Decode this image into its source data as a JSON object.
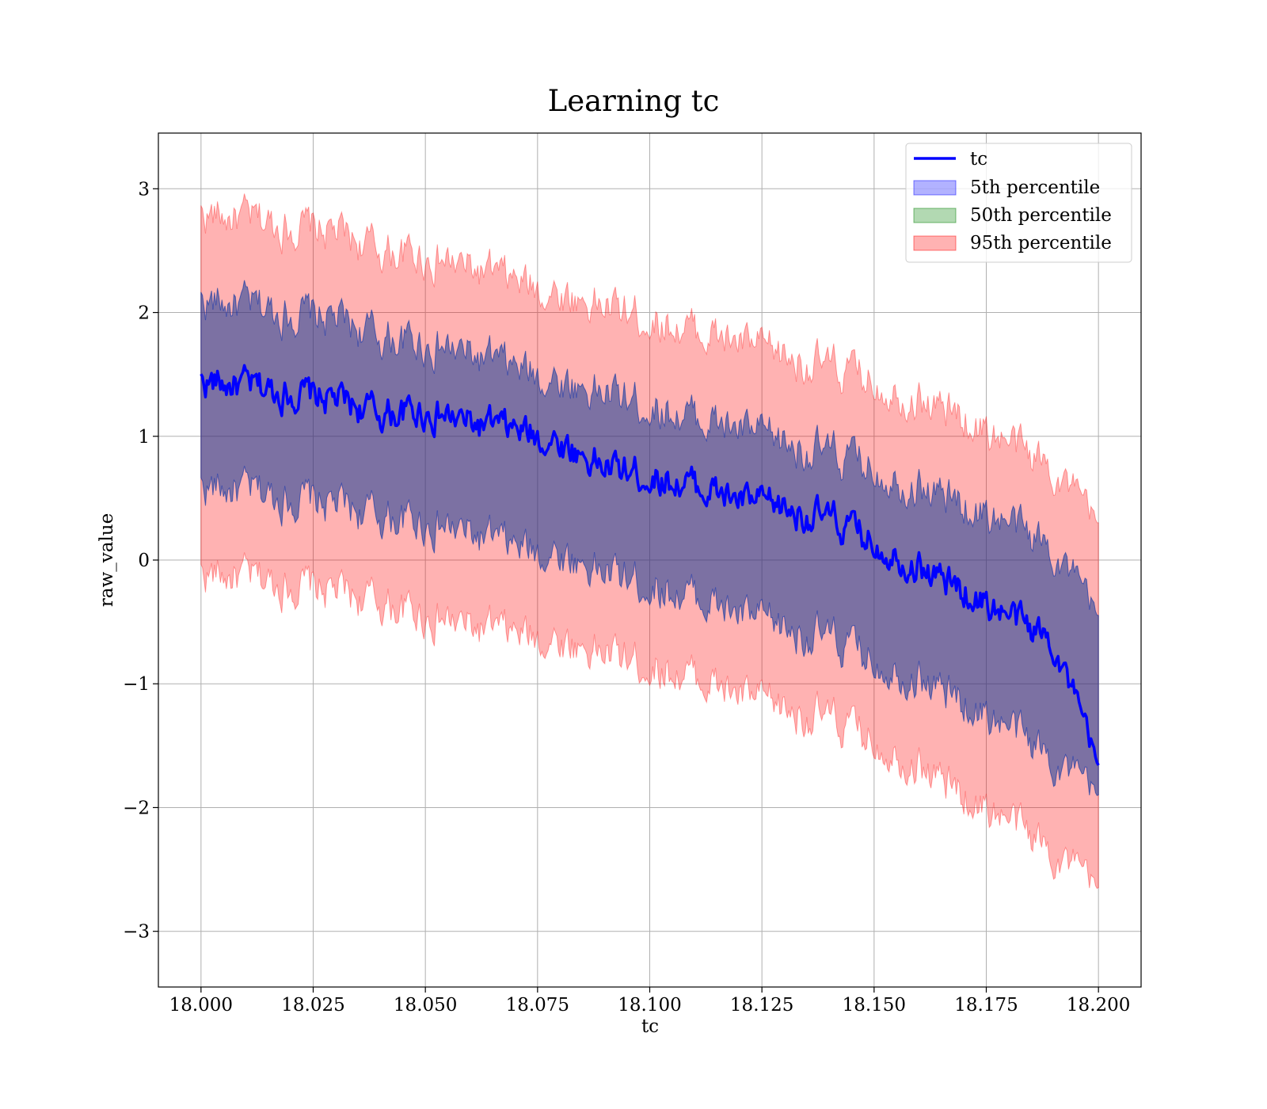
{
  "chart_data": {
    "type": "line",
    "title": "Learning tc",
    "xlabel": "tc",
    "ylabel": "raw_value",
    "xlim": [
      17.9905,
      18.2095
    ],
    "ylim": [
      -3.45,
      3.45
    ],
    "x_ticks": [
      18.0,
      18.025,
      18.05,
      18.075,
      18.1,
      18.125,
      18.15,
      18.175,
      18.2
    ],
    "x_tick_labels": [
      "18.000",
      "18.025",
      "18.050",
      "18.075",
      "18.100",
      "18.125",
      "18.150",
      "18.175",
      "18.200"
    ],
    "y_ticks": [
      3,
      2,
      1,
      0,
      -1,
      -2,
      -3
    ],
    "y_tick_labels": [
      "3",
      "2",
      "1",
      "0",
      "−1",
      "−2",
      "−3"
    ],
    "grid": true,
    "legend_position": "top-right",
    "colors": {
      "line": "#0000ff",
      "band_5": "#0000ff",
      "band_50": "#008000",
      "band_95": "#ff0000"
    },
    "series": [
      {
        "name": "tc",
        "kind": "line",
        "x": [
          18.0,
          18.01,
          18.02,
          18.03,
          18.04,
          18.05,
          18.06,
          18.07,
          18.08,
          18.09,
          18.1,
          18.11,
          18.12,
          18.13,
          18.14,
          18.15,
          18.16,
          18.17,
          18.18,
          18.19,
          18.2
        ],
        "y": [
          1.45,
          1.4,
          1.35,
          1.3,
          1.18,
          1.2,
          1.1,
          1.05,
          0.95,
          0.75,
          0.68,
          0.6,
          0.48,
          0.42,
          0.32,
          0.15,
          -0.05,
          -0.25,
          -0.45,
          -0.65,
          -1.7
        ]
      },
      {
        "name": "5th percentile",
        "kind": "band",
        "x": [
          18.0,
          18.01,
          18.02,
          18.03,
          18.04,
          18.05,
          18.06,
          18.07,
          18.08,
          18.09,
          18.1,
          18.11,
          18.12,
          18.13,
          18.14,
          18.15,
          18.16,
          18.17,
          18.18,
          18.19,
          18.2
        ],
        "lower": [
          0.6,
          0.55,
          0.5,
          0.45,
          0.35,
          0.3,
          0.2,
          0.1,
          0.05,
          -0.1,
          -0.2,
          -0.3,
          -0.45,
          -0.55,
          -0.65,
          -0.8,
          -0.95,
          -1.15,
          -1.35,
          -1.6,
          -1.95
        ],
        "upper": [
          2.1,
          2.05,
          2.0,
          1.95,
          1.8,
          1.75,
          1.65,
          1.55,
          1.45,
          1.35,
          1.25,
          1.15,
          1.05,
          0.95,
          0.85,
          0.75,
          0.6,
          0.45,
          0.3,
          0.1,
          -0.5
        ]
      },
      {
        "name": "50th percentile",
        "kind": "band",
        "x": [
          18.0,
          18.01,
          18.02,
          18.03,
          18.04,
          18.05,
          18.06,
          18.07,
          18.08,
          18.09,
          18.1,
          18.11,
          18.12,
          18.13,
          18.14,
          18.15,
          18.16,
          18.17,
          18.18,
          18.19,
          18.2
        ],
        "lower": [
          0.6,
          0.55,
          0.5,
          0.45,
          0.35,
          0.3,
          0.2,
          0.1,
          0.05,
          -0.1,
          -0.2,
          -0.3,
          -0.45,
          -0.55,
          -0.65,
          -0.8,
          -0.95,
          -1.15,
          -1.35,
          -1.6,
          -1.95
        ],
        "upper": [
          2.1,
          2.05,
          2.0,
          1.95,
          1.8,
          1.75,
          1.65,
          1.55,
          1.45,
          1.35,
          1.25,
          1.15,
          1.05,
          0.95,
          0.85,
          0.75,
          0.6,
          0.45,
          0.3,
          0.1,
          -0.5
        ]
      },
      {
        "name": "95th percentile",
        "kind": "band",
        "x": [
          18.0,
          18.01,
          18.02,
          18.03,
          18.04,
          18.05,
          18.06,
          18.07,
          18.08,
          18.09,
          18.1,
          18.11,
          18.12,
          18.13,
          18.14,
          18.15,
          18.16,
          18.17,
          18.18,
          18.19,
          18.2
        ],
        "lower": [
          -0.1,
          -0.15,
          -0.2,
          -0.25,
          -0.35,
          -0.45,
          -0.55,
          -0.6,
          -0.65,
          -0.75,
          -0.85,
          -0.95,
          -1.1,
          -1.2,
          -1.3,
          -1.45,
          -1.65,
          -1.9,
          -2.1,
          -2.35,
          -2.7
        ],
        "upper": [
          2.8,
          2.75,
          2.7,
          2.65,
          2.5,
          2.45,
          2.35,
          2.25,
          2.15,
          2.05,
          1.95,
          1.85,
          1.75,
          1.65,
          1.55,
          1.45,
          1.3,
          1.15,
          0.95,
          0.75,
          0.25
        ]
      }
    ]
  }
}
